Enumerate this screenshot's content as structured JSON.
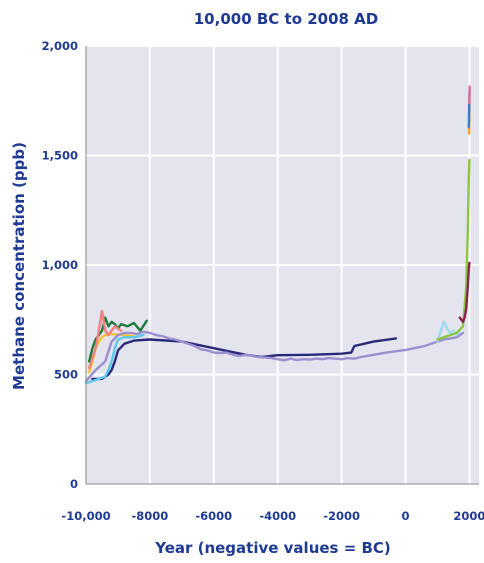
{
  "chart_data": {
    "type": "line",
    "title": "10,000 BC to 2008 AD",
    "xlabel": "Year (negative values = BC)",
    "ylabel": "Methane concentration (ppb)",
    "xlim": [
      -10000,
      2300
    ],
    "ylim": [
      0,
      2000
    ],
    "x_ticks": [
      -10000,
      -8000,
      -6000,
      -4000,
      -2000,
      0,
      2000
    ],
    "x_tick_labels": [
      "-10,000",
      "-8000",
      "-6000",
      "-4000",
      "-2000",
      "0",
      "2000"
    ],
    "y_ticks": [
      0,
      500,
      1000,
      1500,
      2000
    ],
    "y_tick_labels": [
      "0",
      "500",
      "1,000",
      "1,500",
      "2,000"
    ],
    "grid": true,
    "plot_background": "#e4e4ee",
    "series": [
      {
        "color": "#2a2a7a",
        "x": [
          -9800,
          -9500,
          -9400,
          -9300,
          -9200,
          -9100,
          -9000,
          -8800,
          -8500,
          -8000,
          -7000,
          -6000,
          -5000,
          -4500,
          -4000,
          -3000,
          -2000,
          -1700,
          -1600,
          -1000,
          -300
        ],
        "y": [
          480,
          480,
          490,
          500,
          520,
          560,
          610,
          640,
          655,
          660,
          650,
          620,
          590,
          580,
          588,
          590,
          595,
          600,
          630,
          650,
          665
        ]
      },
      {
        "color": "#f4c430",
        "x": [
          -9900,
          -9800,
          -9700,
          -9600,
          -9500,
          -9400,
          -9300,
          -9000,
          -8500
        ],
        "y": [
          510,
          560,
          620,
          650,
          670,
          680,
          685,
          682,
          675
        ]
      },
      {
        "color": "#1e7a3c",
        "x": [
          -9900,
          -9800,
          -9700,
          -9600,
          -9500,
          -9400,
          -9300,
          -9200,
          -9100,
          -9000,
          -8900,
          -8700,
          -8500,
          -8300,
          -8100
        ],
        "y": [
          560,
          620,
          660,
          680,
          700,
          760,
          720,
          740,
          730,
          710,
          730,
          720,
          735,
          700,
          745
        ]
      },
      {
        "color": "#f08080",
        "x": [
          -9900,
          -9700,
          -9600,
          -9500,
          -9400,
          -9300,
          -9100,
          -8900
        ],
        "y": [
          530,
          620,
          700,
          790,
          700,
          680,
          720,
          700
        ]
      },
      {
        "color": "#5bc8ee",
        "x": [
          -10000,
          -9800,
          -9600,
          -9400,
          -9300,
          -9200,
          -9100,
          -9000,
          -8800,
          -8500,
          -8200
        ],
        "y": [
          460,
          470,
          480,
          490,
          520,
          560,
          620,
          660,
          670,
          670,
          680
        ]
      },
      {
        "color": "#9a90d0",
        "x": [
          -10000,
          -9700,
          -9400,
          -9200,
          -9000,
          -8800,
          -8600,
          -8400,
          -8200,
          -8000,
          -7800,
          -7600,
          -7400,
          -7200,
          -7000,
          -6800,
          -6600,
          -6400,
          -6200,
          -6000,
          -5800,
          -5600,
          -5400,
          -5200,
          -5000,
          -4800,
          -4600,
          -4400,
          -4200,
          -4000,
          -3800,
          -3600,
          -3400,
          -3200,
          -3000,
          -2800,
          -2600,
          -2400,
          -2200,
          -2000,
          -1800,
          -1600,
          -1400,
          -1200,
          -1000,
          -800,
          -600,
          -400,
          -200,
          0,
          200,
          400,
          600,
          800,
          1000,
          1200,
          1400,
          1600,
          1800
        ],
        "y": [
          470,
          520,
          560,
          650,
          680,
          690,
          690,
          685,
          695,
          690,
          680,
          675,
          665,
          660,
          650,
          640,
          630,
          615,
          610,
          600,
          598,
          600,
          590,
          585,
          590,
          585,
          580,
          578,
          575,
          570,
          565,
          572,
          566,
          570,
          568,
          572,
          570,
          575,
          572,
          570,
          575,
          572,
          580,
          585,
          590,
          595,
          600,
          604,
          608,
          612,
          618,
          624,
          630,
          640,
          650,
          660,
          665,
          670,
          690
        ]
      },
      {
        "color": "#a0d8f0",
        "x": [
          1000,
          1100,
          1200,
          1300,
          1400,
          1500,
          1600,
          1700
        ],
        "y": [
          650,
          700,
          740,
          710,
          690,
          700,
          680,
          700
        ]
      },
      {
        "color": "#8cc63f",
        "x": [
          1000,
          1200,
          1400,
          1600,
          1800,
          1900,
          1950,
          1980,
          2000
        ],
        "y": [
          660,
          670,
          680,
          690,
          720,
          900,
          1150,
          1400,
          1480
        ]
      },
      {
        "color": "#8b2252",
        "x": [
          1700,
          1800,
          1850,
          1900,
          1950,
          1980,
          2000
        ],
        "y": [
          760,
          740,
          760,
          800,
          900,
          980,
          1010
        ]
      },
      {
        "color": "#f5a623",
        "x": [
          1990,
          1995,
          2000,
          2005
        ],
        "y": [
          1600,
          1680,
          1720,
          1760
        ]
      },
      {
        "color": "#3a7bd5",
        "x": [
          1980,
          1990,
          2000,
          2008
        ],
        "y": [
          1630,
          1700,
          1760,
          1800
        ]
      },
      {
        "color": "#e0729a",
        "x": [
          1995,
          2000,
          2005,
          2008
        ],
        "y": [
          1740,
          1770,
          1800,
          1815
        ]
      }
    ]
  }
}
